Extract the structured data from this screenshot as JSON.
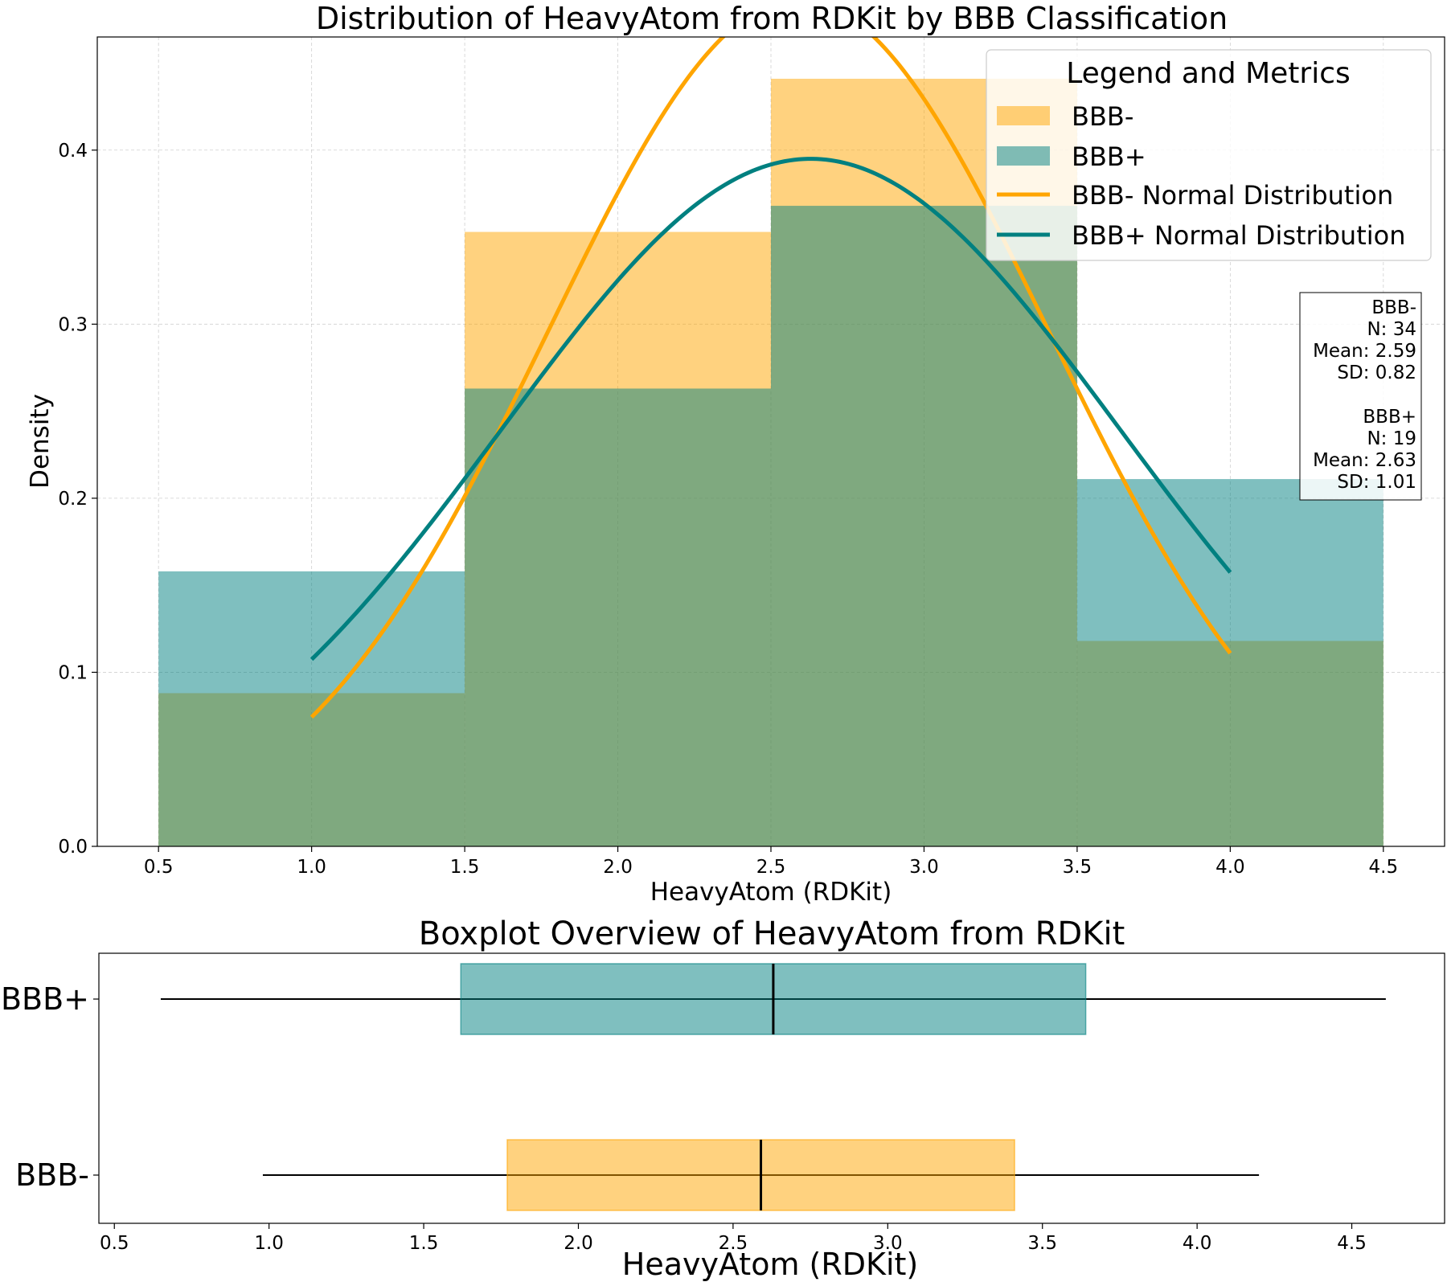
{
  "chart_data": [
    {
      "type": "histogram",
      "title": "Distribution of HeavyAtom from RDKit by BBB Classification",
      "xlabel": "HeavyAtom (RDKit)",
      "ylabel": "Density",
      "xlim": [
        0.3,
        4.7
      ],
      "ylim": [
        0,
        0.465
      ],
      "xticks": [
        0.5,
        1.0,
        1.5,
        2.0,
        2.5,
        3.0,
        3.5,
        4.0,
        4.5
      ],
      "xtick_labels": [
        "0.5",
        "1.0",
        "1.5",
        "2.0",
        "2.5",
        "3.0",
        "3.5",
        "4.0",
        "4.5"
      ],
      "yticks": [
        0.0,
        0.1,
        0.2,
        0.3,
        0.4
      ],
      "ytick_labels": [
        "0.0",
        "0.1",
        "0.2",
        "0.3",
        "0.4"
      ],
      "grid": true,
      "bins": [
        0.5,
        1.5,
        2.5,
        3.5,
        4.5
      ],
      "series": [
        {
          "name": "BBB-",
          "color": "#ffa500",
          "values": [
            0.088,
            0.353,
            0.441,
            0.118
          ]
        },
        {
          "name": "BBB+",
          "color": "#008080",
          "values": [
            0.158,
            0.263,
            0.368,
            0.211
          ]
        }
      ],
      "normal_curves": [
        {
          "name": "BBB- Normal Distribution",
          "color": "#ffa500",
          "mean": 2.59,
          "sd": 0.82,
          "x_range": [
            1.0,
            4.0
          ]
        },
        {
          "name": "BBB+ Normal Distribution",
          "color": "#008080",
          "mean": 2.63,
          "sd": 1.01,
          "x_range": [
            1.0,
            4.0
          ]
        }
      ],
      "legend": {
        "title": "Legend and Metrics",
        "placement": "top-right",
        "entries": [
          "BBB-",
          "BBB+",
          "BBB- Normal Distribution",
          "BBB+ Normal Distribution"
        ]
      },
      "metrics_box": {
        "placement": "right",
        "lines": [
          "BBB-",
          "N: 34",
          "Mean: 2.59",
          "SD: 0.82",
          "",
          "BBB+",
          "N: 19",
          "Mean: 2.63",
          "SD: 1.01"
        ]
      }
    },
    {
      "type": "boxplot",
      "title": "Boxplot Overview of HeavyAtom from RDKit",
      "xlabel": "HeavyAtom (RDKit)",
      "xlim": [
        0.45,
        4.8
      ],
      "xticks": [
        0.5,
        1.0,
        1.5,
        2.0,
        2.5,
        3.0,
        3.5,
        4.0,
        4.5
      ],
      "xtick_labels": [
        "0.5",
        "1.0",
        "1.5",
        "2.0",
        "2.5",
        "3.0",
        "3.5",
        "4.0",
        "4.5"
      ],
      "categories": [
        "BBB+",
        "BBB-"
      ],
      "boxes": [
        {
          "name": "BBB+",
          "color": "#008080",
          "whisker_low": 0.65,
          "q1": 1.62,
          "median": 2.63,
          "q3": 3.64,
          "whisker_high": 4.61
        },
        {
          "name": "BBB-",
          "color": "#ffa500",
          "whisker_low": 0.98,
          "q1": 1.77,
          "median": 2.59,
          "q3": 3.41,
          "whisker_high": 4.2
        }
      ]
    }
  ]
}
